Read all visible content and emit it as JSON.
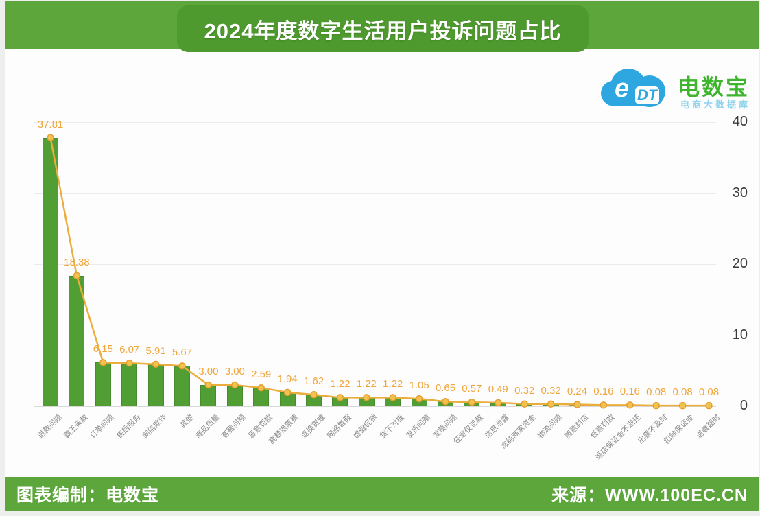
{
  "header": {
    "title": "2024年度数字生活用户投诉问题占比"
  },
  "logo": {
    "mark_e": "e",
    "mark_dt": "DT",
    "name": "电数宝",
    "tagline": "电商大数据库"
  },
  "chart_data": {
    "type": "bar",
    "overlay": "line",
    "title": "2024年度数字生活用户投诉问题占比",
    "unit": "%",
    "categories": [
      "退款问题",
      "霸王条款",
      "订单问题",
      "售后服务",
      "网络欺诈",
      "其他",
      "商品质量",
      "客服问题",
      "恶意罚款",
      "高额退票费",
      "退换货难",
      "网络售假",
      "虚假促销",
      "货不对板",
      "发货问题",
      "发票问题",
      "任意仅退款",
      "信息泄露",
      "冻结商家资金",
      "物流问题",
      "随意封店",
      "任意罚款",
      "退店保证金不退还",
      "出票不及时",
      "扣除保证金",
      "送餐超时"
    ],
    "values": [
      37.81,
      18.38,
      6.15,
      6.07,
      5.91,
      5.67,
      3.0,
      3.0,
      2.59,
      1.94,
      1.62,
      1.22,
      1.22,
      1.22,
      1.05,
      0.65,
      0.57,
      0.49,
      0.32,
      0.32,
      0.24,
      0.16,
      0.16,
      0.08,
      0.08,
      0.08
    ],
    "value_labels": [
      "37.81",
      "18.38",
      "6.15",
      "6.07",
      "5.91",
      "5.67",
      "3.00",
      "3.00",
      "2.59",
      "1.94",
      "1.62",
      "1.22",
      "1.22",
      "1.22",
      "1.05",
      "0.65",
      "0.57",
      "0.49",
      "0.32",
      "0.32",
      "0.24",
      "0.16",
      "0.16",
      "0.08",
      "0.08",
      "0.08"
    ],
    "ylim": [
      0,
      40
    ],
    "yticks": [
      0,
      10,
      20,
      30,
      40
    ],
    "yaxis_side": "right",
    "grid": "horizontal light-gray",
    "legend": "none",
    "colors": {
      "bar": "#509E34",
      "bar_border": "#478c2c",
      "line": "#EBAD3C",
      "marker_fill": "#F3C14F",
      "marker_stroke": "#E39D2E",
      "value_label": "#F0A63C"
    }
  },
  "footer": {
    "left": "图表编制：电数宝",
    "right": "来源：WWW.100EC.CN"
  },
  "colors": {
    "banner": "#5CA63B",
    "title_pill": "#4E9A2E",
    "footer_bar": "#5CA63B",
    "logo_blue": "#2EA7E0",
    "logo_green": "#3DB52D"
  }
}
